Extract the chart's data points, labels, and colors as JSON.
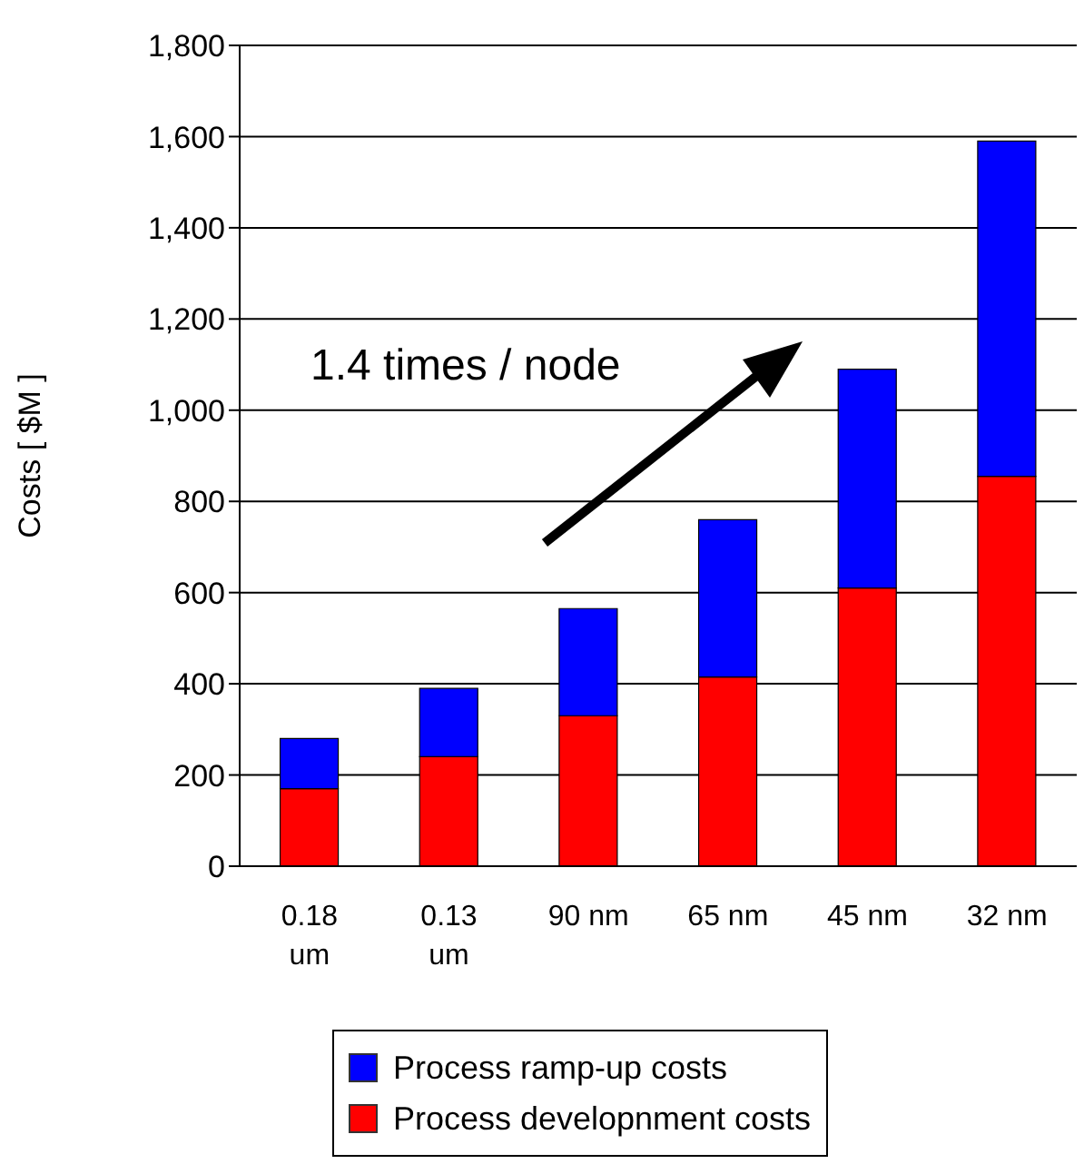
{
  "chart_data": {
    "type": "bar",
    "stacked": true,
    "ylabel": "Costs [ $M ]",
    "categories": [
      "0.18 um",
      "0.13 um",
      "90 nm",
      "65 nm",
      "45 nm",
      "32 nm"
    ],
    "series": [
      {
        "name": "Process developnment costs",
        "color": "#ff0000",
        "values": [
          170,
          240,
          330,
          415,
          610,
          855
        ]
      },
      {
        "name": "Process ramp-up costs",
        "color": "#0000ff",
        "values": [
          110,
          150,
          235,
          345,
          480,
          735
        ]
      }
    ],
    "ylim": [
      0,
      1800
    ],
    "yticks": [
      {
        "value": 0,
        "label": "0"
      },
      {
        "value": 200,
        "label": "200"
      },
      {
        "value": 400,
        "label": "400"
      },
      {
        "value": 600,
        "label": "600"
      },
      {
        "value": 800,
        "label": "800"
      },
      {
        "value": 1000,
        "label": "1,000"
      },
      {
        "value": 1200,
        "label": "1,200"
      },
      {
        "value": 1400,
        "label": "1,400"
      },
      {
        "value": 1600,
        "label": "1,600"
      },
      {
        "value": 1800,
        "label": "1,800"
      }
    ],
    "grid": "y",
    "legend": "bottom",
    "annotations": [
      "1.4 times / node"
    ]
  }
}
